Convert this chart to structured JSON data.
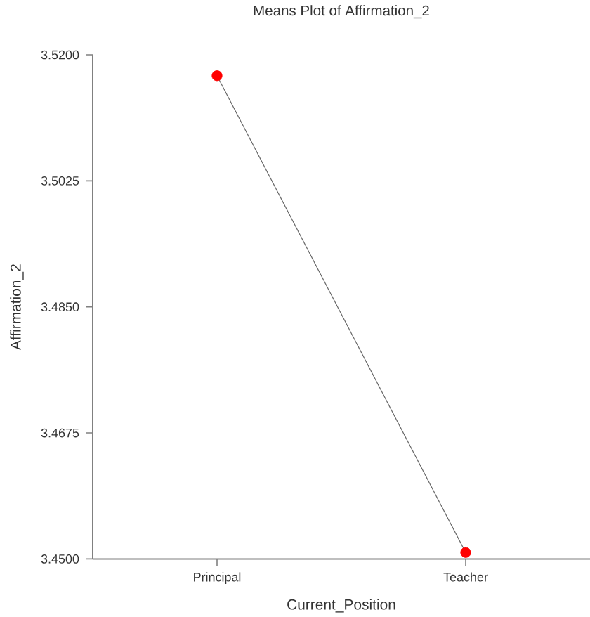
{
  "chart_data": {
    "type": "line",
    "title": "Means Plot of Affirmation_2",
    "xlabel": "Current_Position",
    "ylabel": "Affirmation_2",
    "categories": [
      "Principal",
      "Teacher"
    ],
    "series": [
      {
        "color": "#666666",
        "colors": [
          "#ff0000",
          "#ff0000"
        ],
        "values": [
          3.5171,
          3.4509
        ]
      }
    ],
    "ylim": [
      3.45,
      3.52
    ],
    "yticks": [
      {
        "value": 3.45,
        "label": "3.4500"
      },
      {
        "value": 3.4675,
        "label": "3.4675"
      },
      {
        "value": 3.485,
        "label": "3.4850"
      },
      {
        "value": 3.5025,
        "label": "3.5025"
      },
      {
        "value": 3.52,
        "label": "3.5200"
      }
    ],
    "marker": "circle"
  }
}
